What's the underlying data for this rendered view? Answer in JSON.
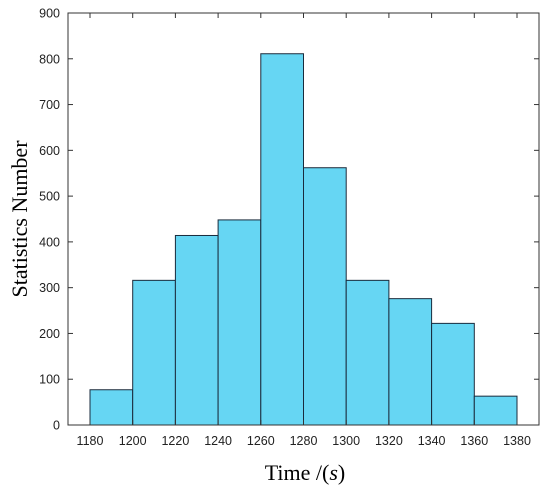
{
  "chart_data": {
    "type": "histogram",
    "title": "",
    "xlabel": "Time /(s)",
    "xlabel_parts": {
      "prefix": "Time /(",
      "italic": "s",
      "suffix": ")"
    },
    "ylabel": "Statistics Number",
    "xlim": [
      1180,
      1380
    ],
    "ylim": [
      0,
      900
    ],
    "xticks": [
      1180,
      1200,
      1220,
      1240,
      1260,
      1280,
      1300,
      1320,
      1340,
      1360,
      1380
    ],
    "yticks": [
      0,
      100,
      200,
      300,
      400,
      500,
      600,
      700,
      800,
      900
    ],
    "bin_edges": [
      1180,
      1200,
      1220,
      1240,
      1260,
      1280,
      1300,
      1320,
      1340,
      1360,
      1380
    ],
    "values": [
      77,
      316,
      414,
      448,
      811,
      562,
      316,
      276,
      222,
      63
    ],
    "grid": false,
    "legend": "none",
    "colors": {
      "bar_fill": "#66d6f3",
      "bar_stroke": "#1a2b3c",
      "axis": "#333333"
    }
  }
}
